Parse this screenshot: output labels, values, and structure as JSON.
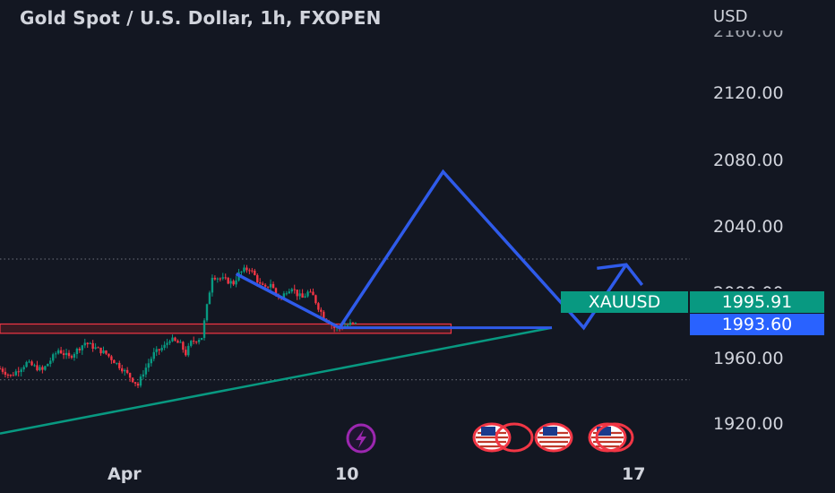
{
  "header": {
    "title": "Gold Spot / U.S. Dollar, 1h, FXOPEN",
    "currency": "USD"
  },
  "chart_data": {
    "type": "candlestick",
    "symbol": "XAUUSD",
    "ylim": [
      1905,
      2170
    ],
    "yticks": [
      "2120.00",
      "2080.00",
      "2040.00",
      "1960.00",
      "1920.00"
    ],
    "yticks_partial": [
      "2160.00",
      "2000.00"
    ],
    "xticks": [
      "Apr",
      "10",
      "17"
    ],
    "last_price": "1995.91",
    "second_price": "1993.60",
    "dotted_levels": [
      2031,
      1966
    ],
    "price_path": [
      [
        0,
        1972
      ],
      [
        2,
        1968
      ],
      [
        5,
        1975
      ],
      [
        8,
        1971
      ],
      [
        11,
        1982
      ],
      [
        13,
        1978
      ],
      [
        16,
        1986
      ],
      [
        18,
        1983
      ],
      [
        20,
        1980
      ],
      [
        23,
        1972
      ],
      [
        25,
        1966
      ],
      [
        26,
        1963
      ],
      [
        27,
        1970
      ],
      [
        29,
        1980
      ],
      [
        31,
        1984
      ],
      [
        32,
        1988
      ],
      [
        34,
        1985
      ],
      [
        35,
        1980
      ],
      [
        36,
        1986
      ],
      [
        38,
        1989
      ],
      [
        40,
        2022
      ],
      [
        42,
        2020
      ],
      [
        44,
        2018
      ],
      [
        45,
        2023
      ],
      [
        46,
        2025
      ],
      [
        47,
        2026
      ],
      [
        48,
        2022
      ],
      [
        49,
        2017
      ],
      [
        50,
        2015
      ],
      [
        51,
        2018
      ],
      [
        52,
        2012
      ],
      [
        53,
        2010
      ],
      [
        54,
        2014
      ],
      [
        55,
        2016
      ],
      [
        56,
        2012
      ],
      [
        57,
        2010
      ],
      [
        58,
        2013
      ],
      [
        59,
        2011
      ],
      [
        60,
        2005
      ],
      [
        61,
        2000
      ],
      [
        62,
        1997
      ],
      [
        63,
        1994
      ],
      [
        64,
        1994
      ],
      [
        65,
        1995
      ],
      [
        66,
        1996
      ],
      [
        67,
        1996
      ]
    ],
    "support_zone": {
      "x0": 0,
      "x1": 85,
      "y_low": 1991,
      "y_high": 1996
    },
    "trendline": {
      "x0": 0,
      "y0": 1937,
      "x1": 104,
      "y1": 1994
    },
    "projection_path": [
      [
        44.5,
        2023
      ],
      [
        64,
        1994
      ],
      [
        83.5,
        2078
      ],
      [
        110,
        1994
      ],
      [
        118,
        2028
      ]
    ],
    "projection_flat": {
      "x0": 64,
      "x1": 104,
      "y": 1994
    },
    "projection_arrowhead": [
      [
        112.5,
        2026
      ],
      [
        118,
        2028
      ],
      [
        121,
        2017
      ]
    ],
    "x_axis_positions": {
      "Apr": 24,
      "10": 64,
      "17": 117
    },
    "x_range": [
      0,
      130
    ],
    "colors": {
      "background": "#131722",
      "grid_dots": "#5d606b",
      "up": "#089981",
      "down": "#f23645",
      "trendline": "#089981",
      "projection": "#2f5bea",
      "zone_fill": "#3a1a22",
      "zone_border": "#f23645",
      "flash_icon": "#9c27b0",
      "flag_ring": "#f23645"
    },
    "events": [
      {
        "icon": "lightning-icon",
        "x": 68.5
      },
      {
        "icon": "us-flag-icon",
        "x": 91
      },
      {
        "icon": "us-flag-icon",
        "x": 94
      },
      {
        "icon": "us-flag-icon",
        "x": 101.5
      },
      {
        "icon": "us-flag-icon",
        "x": 112
      },
      {
        "icon": "us-flag-icon",
        "x": 113
      }
    ]
  }
}
